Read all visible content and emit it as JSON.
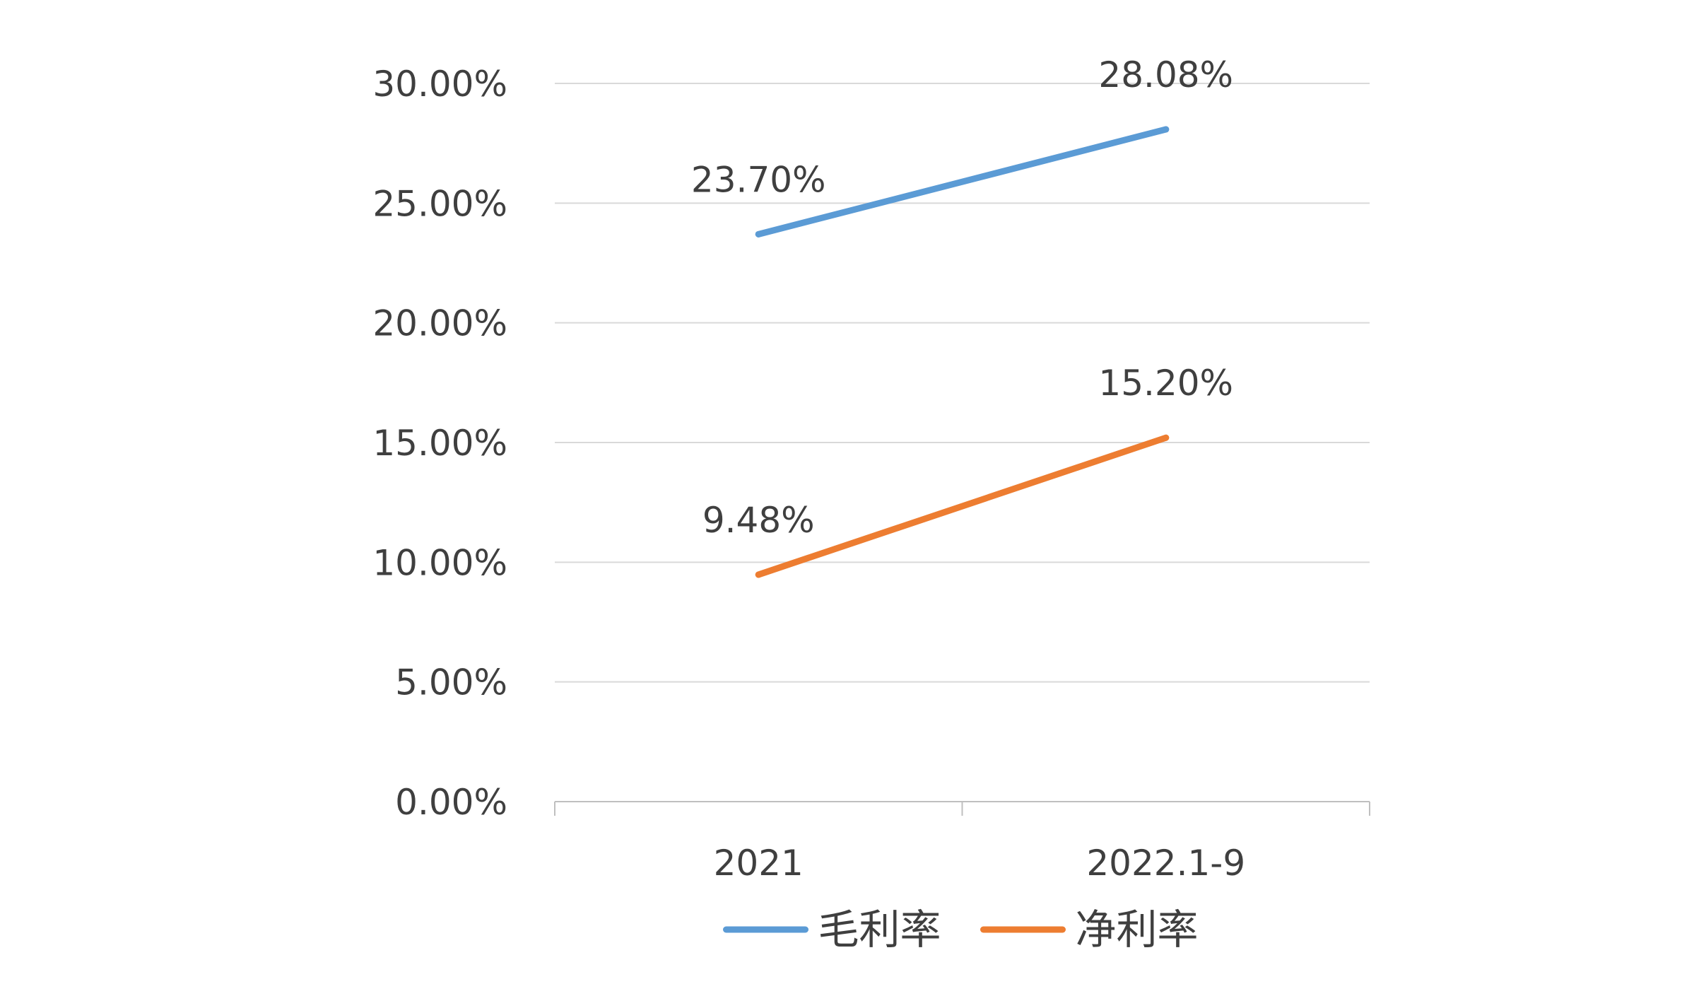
{
  "chart_data": {
    "type": "line",
    "title": "",
    "xlabel": "",
    "ylabel": "",
    "categories": [
      "2021",
      "2022.1-9"
    ],
    "ylim": [
      0,
      0.3
    ],
    "y_tick_values": [
      0,
      0.05,
      0.1,
      0.15,
      0.2,
      0.25,
      0.3
    ],
    "y_tick_labels": [
      "0.00%",
      "5.00%",
      "10.00%",
      "15.00%",
      "20.00%",
      "25.00%",
      "30.00%"
    ],
    "grid": true,
    "legend_position": "bottom",
    "series": [
      {
        "name": "毛利率",
        "color": "#5b9bd5",
        "values": [
          0.237,
          0.2808
        ],
        "labels": [
          "23.70%",
          "28.08%"
        ]
      },
      {
        "name": "净利率",
        "color": "#ed7d31",
        "values": [
          0.0948,
          0.152
        ],
        "labels": [
          "9.48%",
          "15.20%"
        ]
      }
    ]
  }
}
